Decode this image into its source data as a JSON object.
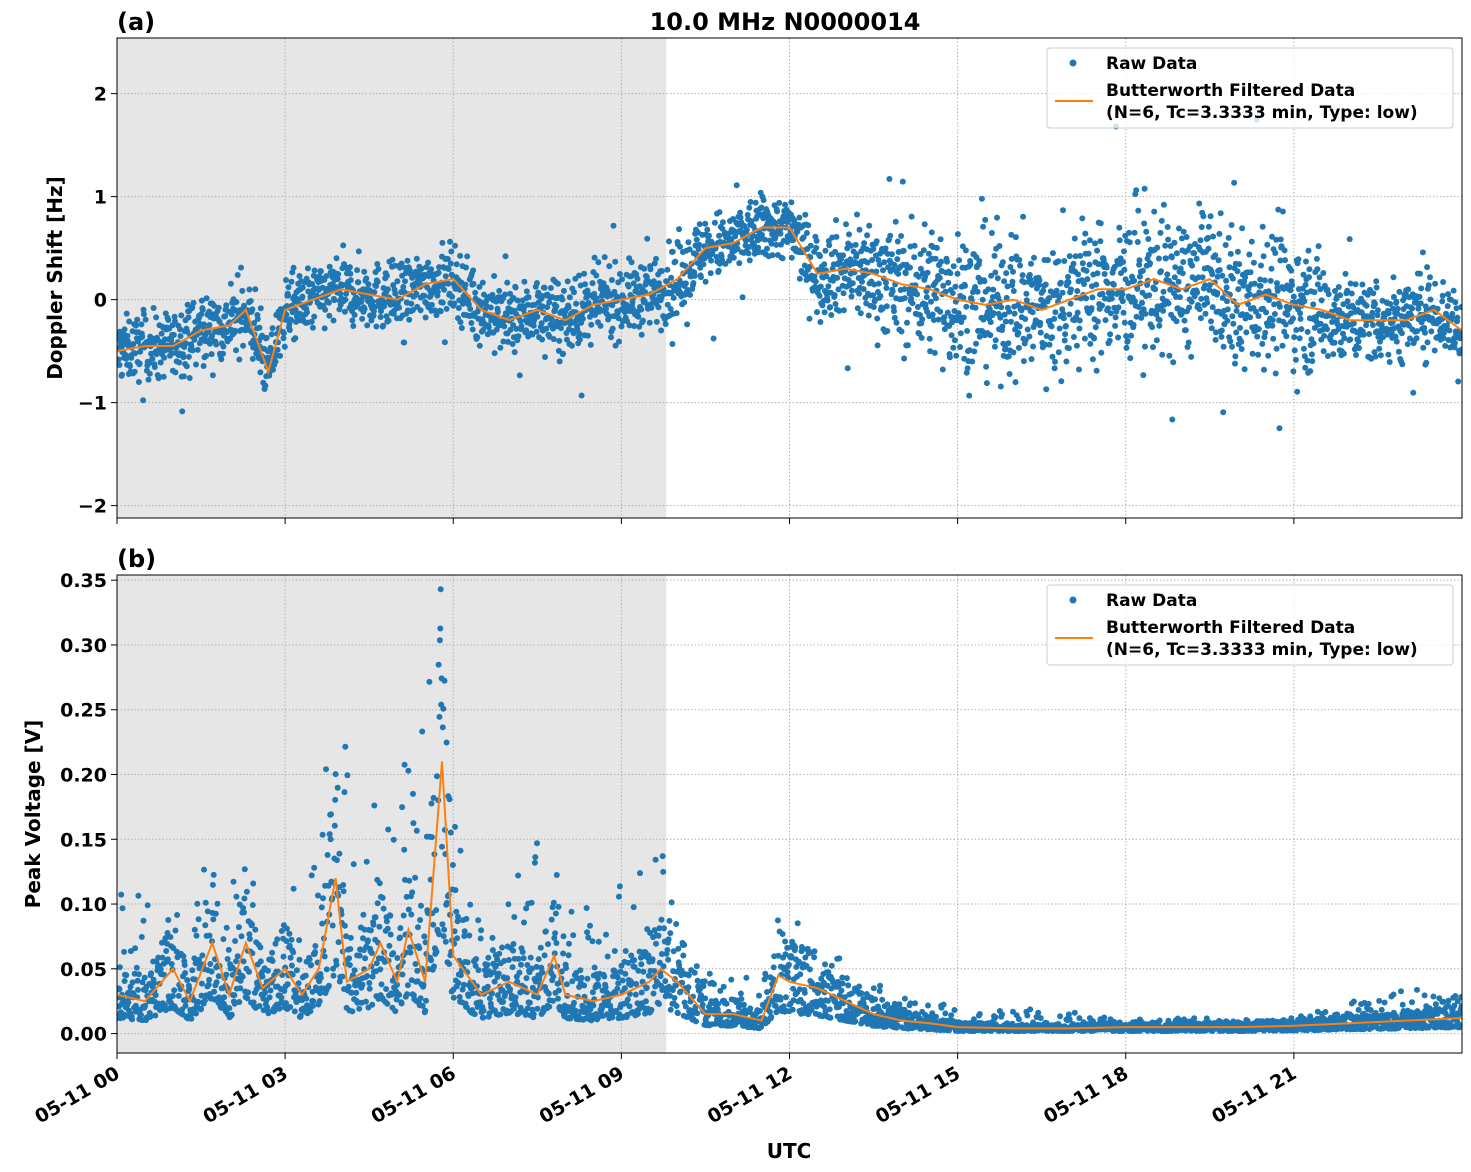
{
  "figure": {
    "title": "10.0 MHz N0000014",
    "xlabel": "UTC",
    "colors": {
      "raw": "#1f77b4",
      "filtered": "#ff7f0e",
      "shaded": "#e6e6e6"
    }
  },
  "chart_data": [
    {
      "panel_label": "(a)",
      "type": "scatter+line",
      "ylabel": "Doppler Shift [Hz]",
      "x_unit": "hours UTC on 05-11",
      "xlim": [
        0,
        24
      ],
      "ylim": [
        -2.12,
        2.54
      ],
      "x_ticks": [
        0,
        3,
        6,
        9,
        12,
        15,
        18,
        21
      ],
      "x_tick_labels": [
        "05-11 00",
        "05-11 03",
        "05-11 06",
        "05-11 09",
        "05-11 12",
        "05-11 15",
        "05-11 18",
        "05-11 21"
      ],
      "y_ticks": [
        -2,
        -1,
        0,
        1,
        2
      ],
      "y_tick_labels": [
        "−2",
        "−1",
        "0",
        "1",
        "2"
      ],
      "grid": true,
      "shaded_region_hours": [
        0,
        9.8
      ],
      "legend": {
        "placement": "top-right",
        "entries": [
          "Raw Data",
          "Butterworth Filtered Data",
          "(N=6, Tc=3.3333 min, Type: low)"
        ]
      },
      "filtered_series": [
        [
          0,
          -0.5
        ],
        [
          0.5,
          -0.45
        ],
        [
          1,
          -0.45
        ],
        [
          1.5,
          -0.3
        ],
        [
          2,
          -0.25
        ],
        [
          2.3,
          -0.1
        ],
        [
          2.5,
          -0.4
        ],
        [
          2.7,
          -0.7
        ],
        [
          3,
          -0.1
        ],
        [
          3.5,
          0.0
        ],
        [
          4,
          0.1
        ],
        [
          4.5,
          0.05
        ],
        [
          5,
          0.0
        ],
        [
          5.5,
          0.15
        ],
        [
          6,
          0.2
        ],
        [
          6.5,
          -0.1
        ],
        [
          7,
          -0.2
        ],
        [
          7.5,
          -0.1
        ],
        [
          8,
          -0.2
        ],
        [
          8.5,
          -0.05
        ],
        [
          9,
          0.0
        ],
        [
          9.5,
          0.05
        ],
        [
          10,
          0.2
        ],
        [
          10.5,
          0.5
        ],
        [
          11,
          0.55
        ],
        [
          11.5,
          0.7
        ],
        [
          12,
          0.7
        ],
        [
          12.5,
          0.25
        ],
        [
          13,
          0.3
        ],
        [
          13.5,
          0.25
        ],
        [
          14,
          0.15
        ],
        [
          14.5,
          0.1
        ],
        [
          15,
          0.0
        ],
        [
          15.5,
          -0.05
        ],
        [
          16,
          0.0
        ],
        [
          16.5,
          -0.1
        ],
        [
          17,
          0.0
        ],
        [
          17.5,
          0.1
        ],
        [
          18,
          0.1
        ],
        [
          18.5,
          0.2
        ],
        [
          19,
          0.1
        ],
        [
          19.5,
          0.2
        ],
        [
          20,
          -0.05
        ],
        [
          20.5,
          0.05
        ],
        [
          21,
          -0.05
        ],
        [
          21.5,
          -0.1
        ],
        [
          22,
          -0.2
        ],
        [
          22.5,
          -0.2
        ],
        [
          23,
          -0.2
        ],
        [
          23.5,
          -0.1
        ],
        [
          24,
          -0.3
        ]
      ],
      "raw_spread_hz": [
        [
          0,
          0.4
        ],
        [
          10,
          0.45
        ],
        [
          12,
          0.4
        ],
        [
          13,
          0.6
        ],
        [
          15,
          0.9
        ],
        [
          21,
          0.85
        ],
        [
          22,
          0.55
        ],
        [
          24,
          0.5
        ]
      ]
    },
    {
      "panel_label": "(b)",
      "type": "scatter+line",
      "ylabel": "Peak Voltage [V]",
      "x_unit": "hours UTC on 05-11",
      "xlim": [
        0,
        24
      ],
      "ylim": [
        -0.015,
        0.354
      ],
      "x_ticks": [
        0,
        3,
        6,
        9,
        12,
        15,
        18,
        21
      ],
      "x_tick_labels": [
        "05-11 00",
        "05-11 03",
        "05-11 06",
        "05-11 09",
        "05-11 12",
        "05-11 15",
        "05-11 18",
        "05-11 21"
      ],
      "y_ticks": [
        0,
        0.05,
        0.1,
        0.15,
        0.2,
        0.25,
        0.3,
        0.35
      ],
      "y_tick_labels": [
        "0.00",
        "0.05",
        "0.10",
        "0.15",
        "0.20",
        "0.25",
        "0.30",
        "0.35"
      ],
      "grid": true,
      "shaded_region_hours": [
        0,
        9.8
      ],
      "legend": {
        "placement": "top-right",
        "entries": [
          "Raw Data",
          "Butterworth Filtered Data",
          "(N=6, Tc=3.3333 min, Type: low)"
        ]
      },
      "filtered_series": [
        [
          0,
          0.03
        ],
        [
          0.5,
          0.025
        ],
        [
          1,
          0.05
        ],
        [
          1.3,
          0.025
        ],
        [
          1.7,
          0.07
        ],
        [
          2,
          0.03
        ],
        [
          2.3,
          0.07
        ],
        [
          2.6,
          0.035
        ],
        [
          3,
          0.05
        ],
        [
          3.3,
          0.03
        ],
        [
          3.6,
          0.05
        ],
        [
          3.9,
          0.12
        ],
        [
          4.1,
          0.04
        ],
        [
          4.5,
          0.05
        ],
        [
          4.7,
          0.07
        ],
        [
          5,
          0.04
        ],
        [
          5.2,
          0.08
        ],
        [
          5.5,
          0.04
        ],
        [
          5.8,
          0.21
        ],
        [
          6,
          0.06
        ],
        [
          6.5,
          0.03
        ],
        [
          7,
          0.04
        ],
        [
          7.5,
          0.03
        ],
        [
          7.8,
          0.06
        ],
        [
          8,
          0.03
        ],
        [
          8.5,
          0.025
        ],
        [
          9,
          0.03
        ],
        [
          9.5,
          0.04
        ],
        [
          9.7,
          0.05
        ],
        [
          10,
          0.04
        ],
        [
          10.5,
          0.015
        ],
        [
          11,
          0.015
        ],
        [
          11.5,
          0.01
        ],
        [
          11.8,
          0.045
        ],
        [
          12,
          0.04
        ],
        [
          12.5,
          0.035
        ],
        [
          13,
          0.025
        ],
        [
          13.5,
          0.015
        ],
        [
          14,
          0.01
        ],
        [
          14.5,
          0.008
        ],
        [
          15,
          0.005
        ],
        [
          16,
          0.004
        ],
        [
          17,
          0.004
        ],
        [
          18,
          0.005
        ],
        [
          19,
          0.005
        ],
        [
          20,
          0.005
        ],
        [
          21,
          0.006
        ],
        [
          22,
          0.008
        ],
        [
          23,
          0.01
        ],
        [
          24,
          0.012
        ]
      ],
      "raw_max": [
        [
          0,
          0.12
        ],
        [
          1,
          0.1
        ],
        [
          1.6,
          0.14
        ],
        [
          2.3,
          0.13
        ],
        [
          3,
          0.08
        ],
        [
          3.3,
          0.15
        ],
        [
          3.9,
          0.25
        ],
        [
          4.5,
          0.17
        ],
        [
          5.1,
          0.21
        ],
        [
          5.8,
          0.335
        ],
        [
          6.2,
          0.1
        ],
        [
          7,
          0.12
        ],
        [
          7.7,
          0.16
        ],
        [
          8.5,
          0.09
        ],
        [
          9.8,
          0.16
        ],
        [
          10.5,
          0.05
        ],
        [
          11.2,
          0.04
        ],
        [
          11.8,
          0.1
        ],
        [
          12.5,
          0.09
        ],
        [
          13,
          0.05
        ],
        [
          14,
          0.03
        ],
        [
          15,
          0.02
        ],
        [
          16.3,
          0.02
        ],
        [
          18,
          0.012
        ],
        [
          21,
          0.012
        ],
        [
          22,
          0.025
        ],
        [
          23,
          0.035
        ],
        [
          24,
          0.03
        ]
      ]
    }
  ]
}
